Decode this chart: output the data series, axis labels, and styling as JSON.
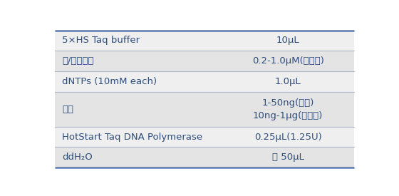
{
  "rows": [
    {
      "label": "5×HS Taq buffer",
      "value": "10μL",
      "bg": "#efefef",
      "text_color": "#2e4d7b"
    },
    {
      "label": "上/下游引物",
      "value": "0.2-1.0μM(终浓度)",
      "bg": "#e4e4e4",
      "text_color": "#2e4d7b"
    },
    {
      "label": "dNTPs (10mM each)",
      "value": "1.0μL",
      "bg": "#efefef",
      "text_color": "#2e4d7b"
    },
    {
      "label": "模板",
      "value": "1-50ng(质粒)\n10ng-1μg(基因组)",
      "bg": "#e4e4e4",
      "text_color": "#2e4d7b",
      "tall": true
    },
    {
      "label": "HotStart Taq DNA Polymerase",
      "value": "0.25μL(1.25U)",
      "bg": "#efefef",
      "text_color": "#2e4d7b"
    },
    {
      "label": "ddH₂O",
      "value": "至 50μL",
      "bg": "#e4e4e4",
      "text_color": "#2e4d7b"
    }
  ],
  "border_color": "#5a7ab0",
  "divider_color": "#b0b8c8",
  "figsize": [
    5.6,
    2.75
  ],
  "dpi": 100,
  "bg_color": "#ffffff",
  "fontsize": 9.5
}
